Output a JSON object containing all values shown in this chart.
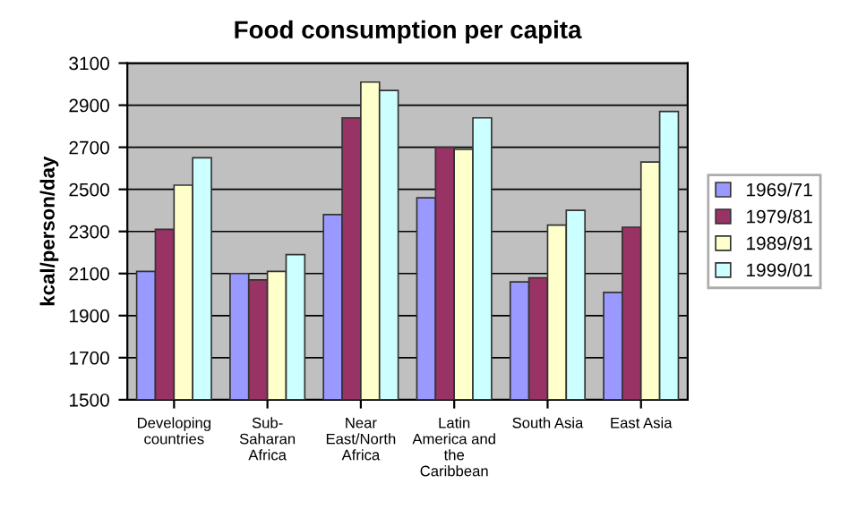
{
  "chart_data": {
    "type": "bar",
    "title": "Food consumption per capita",
    "ylabel": "kcal/person/day",
    "categories": [
      "Developing\ncountries",
      "Sub-\nSaharan\nAfrica",
      "Near\nEast/North\nAfrica",
      "Latin\nAmerica and\nthe\nCaribbean",
      "South Asia",
      "East Asia"
    ],
    "series": [
      {
        "name": "1969/71",
        "color": "#9999ff",
        "values": [
          2110,
          2100,
          2380,
          2460,
          2060,
          2010
        ]
      },
      {
        "name": "1979/81",
        "color": "#993366",
        "values": [
          2310,
          2070,
          2840,
          2700,
          2080,
          2320
        ]
      },
      {
        "name": "1989/91",
        "color": "#ffffcc",
        "values": [
          2520,
          2110,
          3010,
          2690,
          2330,
          2630
        ]
      },
      {
        "name": "1999/01",
        "color": "#ccffff",
        "values": [
          2650,
          2190,
          2970,
          2840,
          2400,
          2870
        ]
      }
    ],
    "ylim": [
      1500,
      3100
    ],
    "yticks": [
      1500,
      1700,
      1900,
      2100,
      2300,
      2500,
      2700,
      2900,
      3100
    ],
    "grid": "y",
    "legend": "right"
  }
}
